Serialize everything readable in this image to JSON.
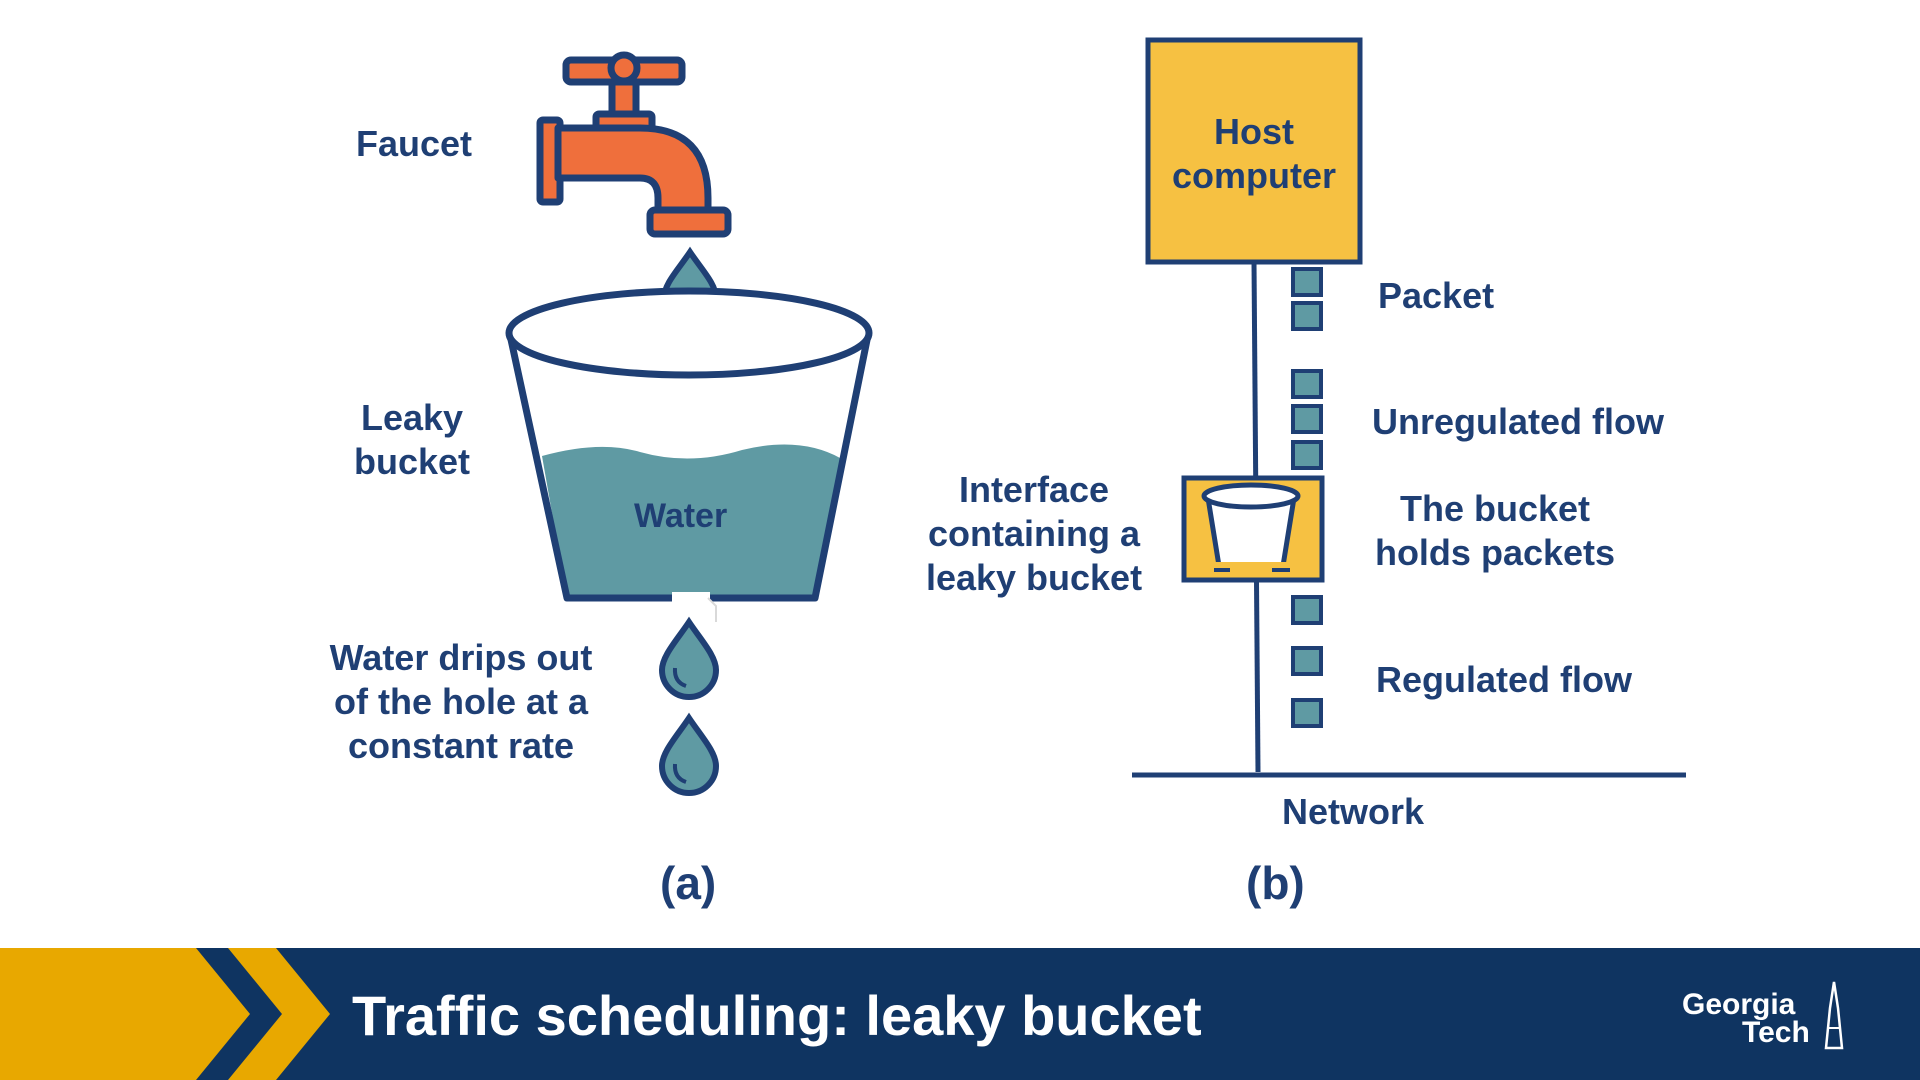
{
  "diagram_a": {
    "faucet_label": "Faucet",
    "bucket_label_line1": "Leaky",
    "bucket_label_line2": "bucket",
    "water_label": "Water",
    "drip_label_line1": "Water drips out",
    "drip_label_line2": "of the hole at a",
    "drip_label_line3": "constant rate",
    "caption": "(a)"
  },
  "diagram_b": {
    "host_line1": "Host",
    "host_line2": "computer",
    "packet_label": "Packet",
    "unregulated_label": "Unregulated flow",
    "interface_line1": "Interface",
    "interface_line2": "containing a",
    "interface_line3": "leaky bucket",
    "holds_line1": "The bucket",
    "holds_line2": "holds packets",
    "regulated_label": "Regulated flow",
    "network_label": "Network",
    "caption": "(b)"
  },
  "footer": {
    "title": "Traffic scheduling: leaky bucket",
    "logo_line1": "Georgia",
    "logo_line2": "Tech"
  },
  "colors": {
    "navy": "#1f3f74",
    "faucet_orange": "#ef6f3c",
    "water_teal": "#5f9aa3",
    "host_yellow": "#f6c142",
    "footer_blue": "#0f3461",
    "gold": "#e8a800"
  }
}
